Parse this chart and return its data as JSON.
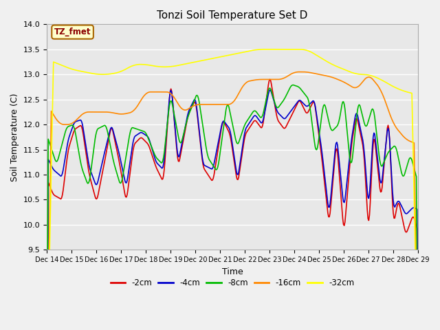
{
  "title": "Tonzi Soil Temperature Set D",
  "xlabel": "Time",
  "ylabel": "Soil Temperature (C)",
  "ylim": [
    9.5,
    14.0
  ],
  "yticks": [
    9.5,
    10.0,
    10.5,
    11.0,
    11.5,
    12.0,
    12.5,
    13.0,
    13.5,
    14.0
  ],
  "x_tick_labels": [
    "Dec 14",
    "Dec 15",
    "Dec 16",
    "Dec 17",
    "Dec 18",
    "Dec 19",
    "Dec 20",
    "Dec 21",
    "Dec 22",
    "Dec 23",
    "Dec 24",
    "Dec 25",
    "Dec 26",
    "Dec 27",
    "Dec 28",
    "Dec 29"
  ],
  "colors": {
    "-2cm": "#dd0000",
    "-4cm": "#0000cc",
    "-8cm": "#00bb00",
    "-16cm": "#ff8800",
    "-32cm": "#ffff00"
  },
  "legend_label": "TZ_fmet",
  "bg_color": "#e8e8e8",
  "grid_color": "#ffffff",
  "kp2_x": [
    0,
    0.25,
    0.6,
    0.85,
    1.1,
    1.4,
    1.7,
    2.0,
    2.3,
    2.6,
    2.9,
    3.2,
    3.5,
    3.8,
    4.1,
    4.4,
    4.7,
    5.0,
    5.3,
    5.7,
    6.0,
    6.3,
    6.7,
    7.1,
    7.4,
    7.7,
    8.0,
    8.4,
    8.7,
    9.0,
    9.3,
    9.6,
    9.9,
    10.2,
    10.5,
    10.8,
    11.1,
    11.4,
    11.7,
    12.0,
    12.3,
    12.5,
    12.8,
    13.0,
    13.2,
    13.5,
    13.8,
    14.0,
    14.2,
    14.5,
    14.8,
    15.0
  ],
  "kp2_y": [
    10.9,
    10.6,
    10.5,
    11.5,
    11.9,
    12.0,
    11.0,
    10.45,
    11.2,
    12.0,
    11.3,
    10.45,
    11.6,
    11.75,
    11.6,
    11.15,
    10.85,
    12.9,
    11.15,
    12.2,
    12.5,
    11.15,
    10.85,
    12.1,
    11.8,
    10.8,
    11.8,
    12.1,
    11.9,
    13.0,
    12.1,
    11.9,
    12.2,
    12.5,
    12.2,
    12.5,
    11.35,
    10.0,
    11.7,
    9.8,
    11.6,
    12.2,
    11.5,
    9.8,
    11.9,
    10.5,
    12.2,
    10.0,
    10.5,
    9.8,
    10.2,
    9.85
  ],
  "kp4_x": [
    0,
    0.25,
    0.6,
    0.85,
    1.1,
    1.4,
    1.7,
    2.0,
    2.3,
    2.6,
    2.9,
    3.2,
    3.5,
    3.8,
    4.1,
    4.4,
    4.7,
    5.0,
    5.3,
    5.7,
    6.0,
    6.3,
    6.7,
    7.1,
    7.4,
    7.7,
    8.0,
    8.4,
    8.7,
    9.0,
    9.3,
    9.6,
    9.9,
    10.2,
    10.5,
    10.8,
    11.1,
    11.4,
    11.7,
    12.0,
    12.3,
    12.5,
    12.8,
    13.0,
    13.2,
    13.5,
    13.8,
    14.0,
    14.2,
    14.5,
    14.8,
    15.0
  ],
  "kp4_y": [
    11.35,
    11.1,
    10.95,
    11.7,
    12.05,
    12.1,
    11.15,
    10.75,
    11.4,
    12.0,
    11.45,
    10.75,
    11.75,
    11.85,
    11.75,
    11.25,
    11.1,
    12.85,
    11.25,
    12.25,
    12.55,
    11.2,
    11.1,
    12.1,
    11.9,
    10.9,
    11.9,
    12.2,
    12.0,
    12.75,
    12.25,
    12.1,
    12.3,
    12.5,
    12.35,
    12.5,
    11.5,
    10.2,
    11.8,
    10.3,
    11.7,
    12.3,
    11.6,
    10.3,
    12.0,
    10.7,
    12.1,
    10.3,
    10.5,
    10.2,
    10.35,
    10.3
  ],
  "kp8_x": [
    0,
    0.4,
    0.8,
    1.1,
    1.4,
    1.7,
    2.0,
    2.4,
    2.7,
    3.0,
    3.4,
    3.7,
    4.0,
    4.4,
    4.7,
    5.0,
    5.4,
    5.7,
    6.1,
    6.5,
    6.9,
    7.3,
    7.7,
    8.0,
    8.4,
    8.7,
    9.0,
    9.3,
    9.6,
    9.9,
    10.2,
    10.6,
    10.9,
    11.2,
    11.5,
    11.8,
    12.0,
    12.3,
    12.6,
    12.9,
    13.2,
    13.5,
    13.8,
    14.1,
    14.4,
    14.7,
    15.0
  ],
  "kp8_y": [
    11.8,
    11.2,
    11.95,
    12.0,
    11.15,
    10.75,
    11.9,
    12.0,
    11.25,
    10.75,
    11.95,
    11.9,
    11.85,
    11.35,
    11.2,
    12.6,
    11.55,
    12.15,
    12.65,
    11.35,
    11.05,
    12.5,
    11.55,
    12.0,
    12.3,
    12.1,
    12.8,
    12.3,
    12.5,
    12.8,
    12.75,
    12.5,
    11.35,
    12.5,
    11.85,
    12.0,
    12.6,
    11.05,
    12.5,
    11.9,
    12.4,
    11.1,
    11.45,
    11.6,
    10.9,
    11.4,
    10.85
  ],
  "kp16_x": [
    0,
    0.5,
    1.0,
    1.5,
    2.0,
    2.5,
    3.0,
    3.5,
    4.0,
    4.5,
    5.0,
    5.5,
    6.0,
    6.5,
    7.0,
    7.5,
    8.0,
    8.5,
    9.0,
    9.5,
    10.0,
    10.5,
    11.0,
    11.5,
    12.0,
    12.5,
    13.0,
    13.5,
    14.0,
    14.5,
    15.0
  ],
  "kp16_y": [
    12.4,
    12.0,
    12.0,
    12.25,
    12.25,
    12.25,
    12.2,
    12.25,
    12.65,
    12.65,
    12.65,
    12.25,
    12.4,
    12.4,
    12.4,
    12.4,
    12.85,
    12.9,
    12.9,
    12.9,
    13.05,
    13.05,
    13.0,
    12.95,
    12.85,
    12.7,
    13.0,
    12.7,
    12.0,
    11.7,
    11.6
  ],
  "kp32_x": [
    0,
    0.5,
    1.0,
    1.5,
    2.0,
    2.5,
    3.0,
    3.5,
    4.0,
    4.5,
    5.0,
    5.5,
    6.0,
    6.5,
    7.0,
    7.5,
    8.0,
    8.5,
    9.0,
    9.5,
    10.0,
    10.5,
    11.0,
    11.5,
    12.0,
    12.5,
    13.0,
    13.5,
    14.0,
    14.5,
    15.0
  ],
  "kp32_y": [
    13.3,
    13.2,
    13.1,
    13.05,
    13.0,
    13.0,
    13.05,
    13.2,
    13.2,
    13.15,
    13.15,
    13.2,
    13.25,
    13.3,
    13.35,
    13.4,
    13.45,
    13.5,
    13.5,
    13.5,
    13.5,
    13.5,
    13.35,
    13.2,
    13.1,
    13.0,
    13.0,
    12.9,
    12.75,
    12.65,
    12.6
  ]
}
